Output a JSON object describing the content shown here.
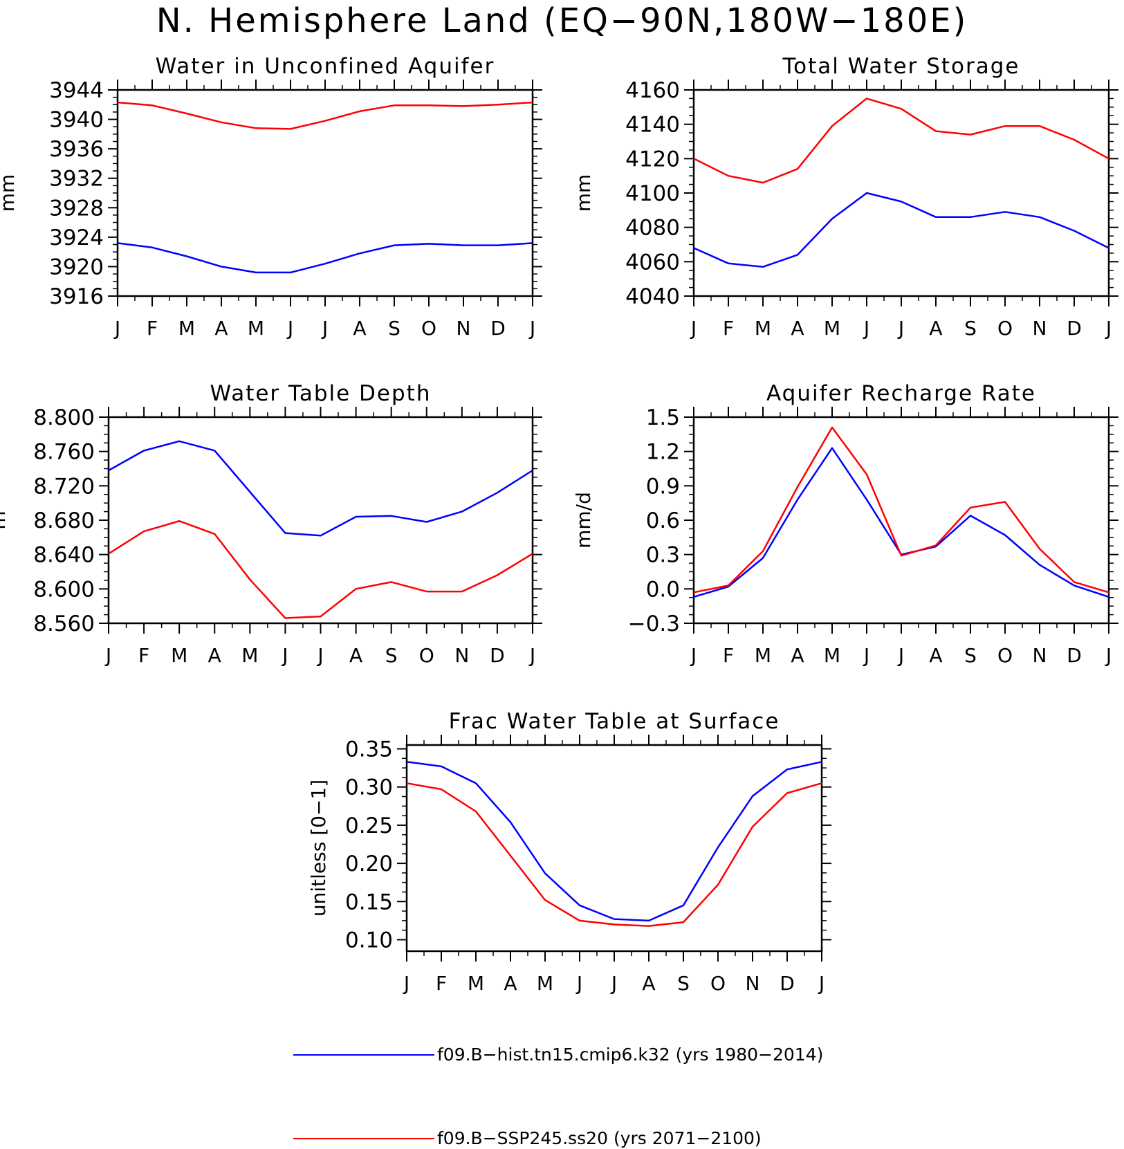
{
  "title": "N. Hemisphere Land (EQ−90N,180W−180E)",
  "series_colors": {
    "hist": "#0000ff",
    "ssp": "#ff0000"
  },
  "legend": [
    {
      "label": "f09.B−hist.tn15.cmip6.k32 (yrs 1980−2014)",
      "color": "#0000ff"
    },
    {
      "label": "f09.B−SSP245.ss20 (yrs 2071−2100)",
      "color": "#ff0000"
    }
  ],
  "chart_data": [
    {
      "type": "line",
      "title": "Water in Unconfined Aquifer",
      "ylabel": "mm",
      "categories": [
        "J",
        "F",
        "M",
        "A",
        "M",
        "J",
        "J",
        "A",
        "S",
        "O",
        "N",
        "D",
        "J"
      ],
      "ylim": [
        3916,
        3944
      ],
      "yticks": [
        "3916",
        "3920",
        "3924",
        "3928",
        "3932",
        "3936",
        "3940",
        "3944"
      ],
      "series": [
        {
          "values": [
            3923.2,
            3922.6,
            3921.4,
            3920.0,
            3919.2,
            3919.2,
            3920.4,
            3921.8,
            3922.9,
            3923.1,
            3922.9,
            3922.9,
            3923.2
          ]
        },
        {
          "values": [
            3942.3,
            3941.9,
            3940.8,
            3939.6,
            3938.8,
            3938.7,
            3939.8,
            3941.1,
            3941.9,
            3941.9,
            3941.8,
            3942.0,
            3942.3
          ]
        }
      ]
    },
    {
      "type": "line",
      "title": "Total Water Storage",
      "ylabel": "mm",
      "categories": [
        "J",
        "F",
        "M",
        "A",
        "M",
        "J",
        "J",
        "A",
        "S",
        "O",
        "N",
        "D",
        "J"
      ],
      "ylim": [
        4040,
        4160
      ],
      "yticks": [
        "4040",
        "4060",
        "4080",
        "4100",
        "4120",
        "4140",
        "4160"
      ],
      "series": [
        {
          "values": [
            4068,
            4059,
            4057,
            4064,
            4085,
            4100,
            4095,
            4086,
            4086,
            4089,
            4086,
            4078,
            4068
          ]
        },
        {
          "values": [
            4120,
            4110,
            4106,
            4114,
            4139,
            4155,
            4149,
            4136,
            4134,
            4139,
            4139,
            4131,
            4120
          ]
        }
      ]
    },
    {
      "type": "line",
      "title": "Water Table Depth",
      "ylabel": "m",
      "categories": [
        "J",
        "F",
        "M",
        "A",
        "M",
        "J",
        "J",
        "A",
        "S",
        "O",
        "N",
        "D",
        "J"
      ],
      "ylim": [
        8.56,
        8.8
      ],
      "yticks": [
        "8.560",
        "8.600",
        "8.640",
        "8.680",
        "8.720",
        "8.760",
        "8.800"
      ],
      "series": [
        {
          "values": [
            8.738,
            8.761,
            8.772,
            8.761,
            8.713,
            8.665,
            8.662,
            8.684,
            8.685,
            8.678,
            8.69,
            8.712,
            8.738
          ]
        },
        {
          "values": [
            8.641,
            8.667,
            8.679,
            8.664,
            8.611,
            8.566,
            8.568,
            8.6,
            8.608,
            8.597,
            8.597,
            8.616,
            8.641
          ]
        }
      ]
    },
    {
      "type": "line",
      "title": "Aquifer Recharge Rate",
      "ylabel": "mm/d",
      "categories": [
        "J",
        "F",
        "M",
        "A",
        "M",
        "J",
        "J",
        "A",
        "S",
        "O",
        "N",
        "D",
        "J"
      ],
      "ylim": [
        -0.3,
        1.5
      ],
      "yticks": [
        "−0.3",
        "0.0",
        "0.3",
        "0.6",
        "0.9",
        "1.2",
        "1.5"
      ],
      "series": [
        {
          "values": [
            -0.07,
            0.02,
            0.27,
            0.78,
            1.23,
            0.78,
            0.3,
            0.37,
            0.64,
            0.47,
            0.21,
            0.03,
            -0.07
          ]
        },
        {
          "values": [
            -0.03,
            0.03,
            0.33,
            0.89,
            1.41,
            1.0,
            0.29,
            0.38,
            0.71,
            0.76,
            0.35,
            0.06,
            -0.03
          ]
        }
      ]
    },
    {
      "type": "line",
      "title": "Frac Water Table at Surface",
      "ylabel": "unitless [0−1]",
      "categories": [
        "J",
        "F",
        "M",
        "A",
        "M",
        "J",
        "J",
        "A",
        "S",
        "O",
        "N",
        "D",
        "J"
      ],
      "ylim": [
        0.085,
        0.355
      ],
      "yticks": [
        "0.10",
        "0.15",
        "0.20",
        "0.25",
        "0.30",
        "0.35"
      ],
      "series": [
        {
          "values": [
            0.333,
            0.327,
            0.305,
            0.254,
            0.187,
            0.145,
            0.127,
            0.125,
            0.145,
            0.221,
            0.288,
            0.323,
            0.333
          ]
        },
        {
          "values": [
            0.305,
            0.297,
            0.268,
            0.21,
            0.152,
            0.125,
            0.12,
            0.118,
            0.123,
            0.172,
            0.248,
            0.292,
            0.305
          ]
        }
      ]
    }
  ]
}
